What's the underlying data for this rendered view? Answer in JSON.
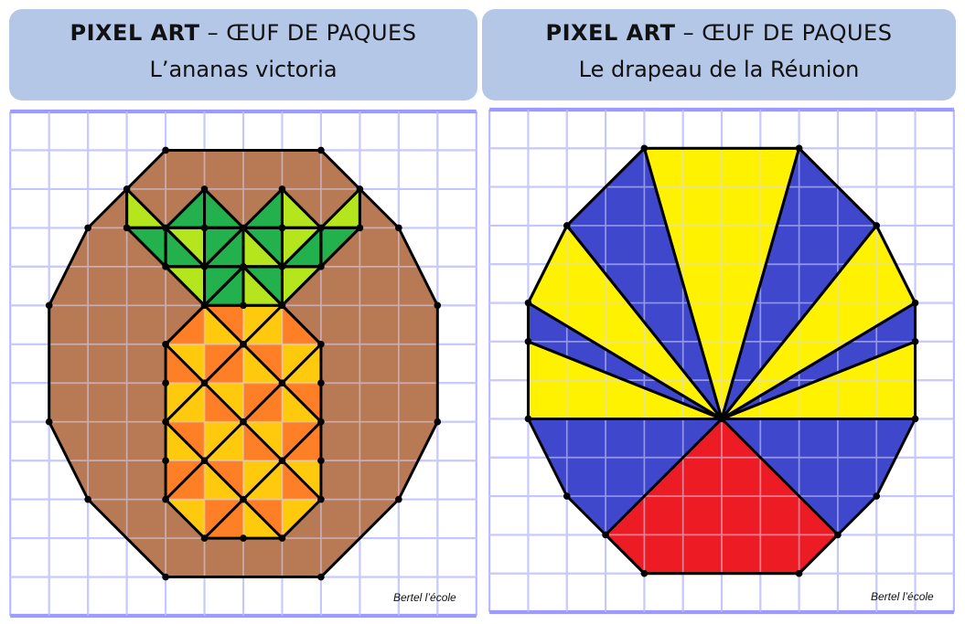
{
  "colors": {
    "header_bg": "#b4c7e7",
    "grid_line": "#b8b8ff",
    "grid_border": "#9a9aff",
    "outline": "#000000",
    "brown": "#b87955",
    "dark_green": "#22b14c",
    "light_green": "#b5e61d",
    "golden_yellow": "#ffc90e",
    "orange": "#ff7f27",
    "yellow": "#fff200",
    "blue": "#3f48cc",
    "red": "#ed1c24"
  },
  "panels": [
    {
      "title_strong": "PIXEL ART",
      "title_rest": " – ŒUF DE PAQUES",
      "subtitle": "L’ananas victoria",
      "credit": "Bertel l’école"
    },
    {
      "title_strong": "PIXEL ART",
      "title_rest": " – ŒUF DE PAQUES",
      "subtitle": "Le drapeau de la Réunion",
      "credit": "Bertel l’école"
    }
  ]
}
